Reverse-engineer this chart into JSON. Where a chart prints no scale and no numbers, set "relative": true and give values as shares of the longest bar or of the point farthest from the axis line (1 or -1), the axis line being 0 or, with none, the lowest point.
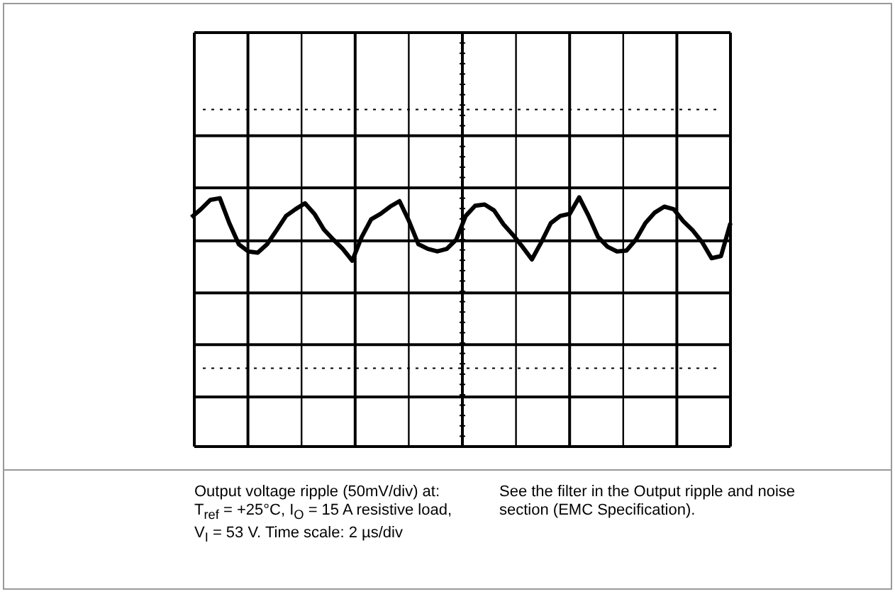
{
  "chart_data": {
    "type": "line",
    "relative": true,
    "grid": true,
    "legend": false,
    "marker": "none",
    "categories": [
      null,
      null,
      null,
      null,
      null,
      null,
      null,
      null,
      null,
      null,
      null,
      null,
      null,
      null,
      null,
      null,
      null,
      null,
      null,
      null,
      null,
      null,
      null,
      null,
      null,
      null,
      null,
      null,
      null,
      null,
      null,
      null,
      null,
      null,
      null,
      null,
      null,
      null,
      null,
      null,
      null,
      null,
      null,
      null,
      null,
      null,
      null,
      null,
      null,
      null,
      null,
      null,
      null,
      null,
      null,
      null,
      null,
      null
    ],
    "series": [
      {
        "color": "#000000",
        "values": [
          0.53,
          0.72,
          0.94,
          0.98,
          0.39,
          -0.11,
          -0.28,
          -0.31,
          -0.11,
          0.22,
          0.56,
          0.72,
          0.86,
          0.61,
          0.24,
          0,
          -0.22,
          -0.5,
          0.06,
          0.48,
          0.61,
          0.78,
          0.91,
          0.44,
          -0.11,
          -0.22,
          -0.28,
          -0.22,
          0,
          0.56,
          0.8,
          0.83,
          0.69,
          0.36,
          0.11,
          -0.17,
          -0.47,
          -0.06,
          0.39,
          0.56,
          0.61,
          1,
          0.56,
          0.06,
          -0.17,
          -0.28,
          -0.26,
          0,
          0.39,
          0.64,
          0.78,
          0.72,
          0.44,
          0.22,
          -0.06,
          -0.44,
          -0.39,
          0.39
        ]
      }
    ],
    "annotations": [
      "Output voltage ripple (50mV/div) at:\nT$_{ref}$ = +25°C, I$_{O}$ = 15 A resistive load,\nV$_{I}$ = 53 V. Time scale: 2 µs/div",
      "See the filter in the Output ripple and noise section (EMC Specification)."
    ]
  }
}
